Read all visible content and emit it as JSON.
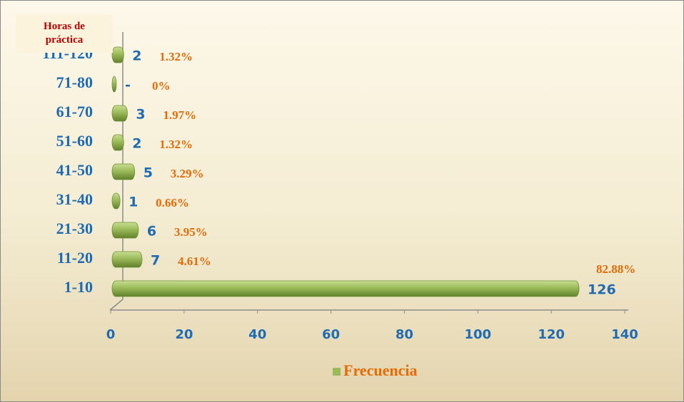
{
  "chart_data": {
    "type": "bar",
    "orientation": "horizontal",
    "y_label": "Horas de práctica",
    "categories": [
      "1-10",
      "11-20",
      "21-30",
      "31-40",
      "41-50",
      "51-60",
      "61-70",
      "71-80",
      "111-120"
    ],
    "series": [
      {
        "name": "Frecuencia",
        "color": "#9bbb59",
        "values": [
          126,
          7,
          6,
          1,
          5,
          2,
          3,
          0,
          2
        ],
        "value_labels": [
          "126",
          "7",
          "6",
          "1",
          "5",
          "2",
          "3",
          "-",
          "2"
        ]
      }
    ],
    "percent_labels": [
      "82.88%",
      "4.61%",
      "3.95%",
      "0.66%",
      "3.29%",
      "1.32%",
      "1.97%",
      "0%",
      "1.32%"
    ],
    "xlim": [
      0,
      140
    ],
    "xticks": [
      0,
      20,
      40,
      60,
      80,
      100,
      120,
      140
    ],
    "legend": "bottom"
  }
}
